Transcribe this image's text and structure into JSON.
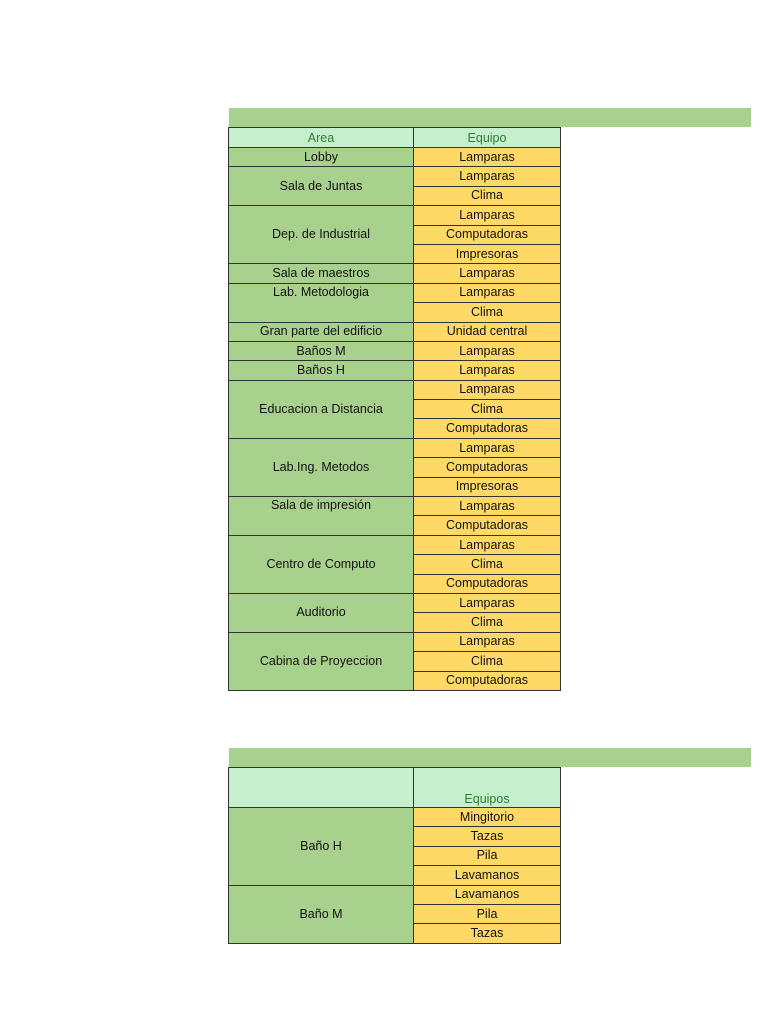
{
  "table1": {
    "headers": {
      "area": "Area",
      "equipo": "Equipo"
    },
    "groups": [
      {
        "area": "Lobby",
        "equipos": [
          "Lamparas"
        ]
      },
      {
        "area": "Sala de Juntas",
        "equipos": [
          "Lamparas",
          "Clima"
        ]
      },
      {
        "area": "Dep. de Industrial",
        "equipos": [
          "Lamparas",
          "Computadoras",
          "Impresoras"
        ]
      },
      {
        "area": "Sala de maestros",
        "equipos": [
          "Lamparas"
        ]
      },
      {
        "area": "Lab. Metodologia",
        "equipos": [
          "Lamparas",
          "Clima"
        ],
        "valign": "top"
      },
      {
        "area": "Gran parte del edificio",
        "equipos": [
          "Unidad central"
        ]
      },
      {
        "area": "Baños M",
        "equipos": [
          "Lamparas"
        ]
      },
      {
        "area": "Baños H",
        "equipos": [
          "Lamparas"
        ]
      },
      {
        "area": "Educacion a Distancia",
        "equipos": [
          "Lamparas",
          "Clima",
          "Computadoras"
        ]
      },
      {
        "area": "Lab.Ing. Metodos",
        "equipos": [
          "Lamparas",
          "Computadoras",
          "Impresoras"
        ]
      },
      {
        "area": "Sala de impresión",
        "equipos": [
          "Lamparas",
          "Computadoras"
        ],
        "valign": "top"
      },
      {
        "area": "Centro de Computo",
        "equipos": [
          "Lamparas",
          "Clima",
          "Computadoras"
        ]
      },
      {
        "area": "Auditorio",
        "equipos": [
          "Lamparas",
          "Clima"
        ]
      },
      {
        "area": "Cabina de Proyeccion",
        "equipos": [
          "Lamparas",
          "Clima",
          "Computadoras"
        ]
      }
    ]
  },
  "table2": {
    "headers": {
      "area": "",
      "equipo": "Equipos"
    },
    "groups": [
      {
        "area": "Baño H",
        "equipos": [
          "Mingitorio",
          "Tazas",
          "Pila",
          "Lavamanos"
        ]
      },
      {
        "area": "Baño M",
        "equipos": [
          "Lavamanos",
          "Pila",
          "Tazas"
        ]
      }
    ]
  }
}
